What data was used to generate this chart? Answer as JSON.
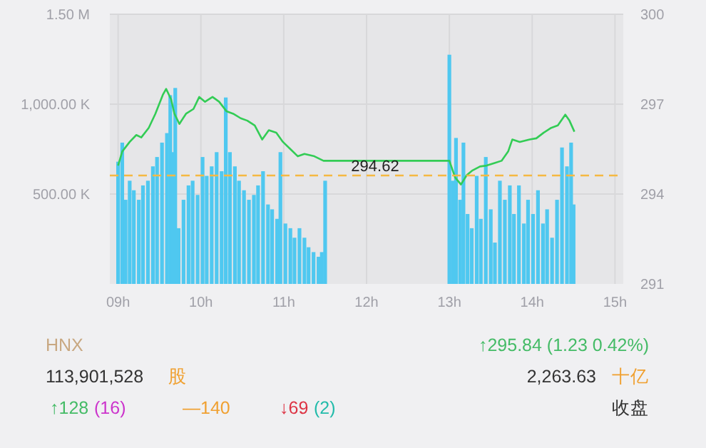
{
  "chart_data": {
    "type": "bar",
    "xlim": [
      8.9,
      15.1
    ],
    "xticks": [
      {
        "value": 9,
        "label": "09h"
      },
      {
        "value": 10,
        "label": "10h"
      },
      {
        "value": 11,
        "label": "11h"
      },
      {
        "value": 12,
        "label": "12h"
      },
      {
        "value": 13,
        "label": "13h"
      },
      {
        "value": 14,
        "label": "14h"
      },
      {
        "value": 15,
        "label": "15h"
      }
    ],
    "ylim": [
      0,
      1500000
    ],
    "yticks": [
      {
        "value": 500000,
        "label": "500.00 K"
      },
      {
        "value": 1000000,
        "label": "1,000.00 K"
      },
      {
        "value": 1500000,
        "label": "1.50 M"
      }
    ],
    "y2lim": [
      291,
      300
    ],
    "y2ticks": [
      291,
      294,
      297,
      300
    ],
    "grid": true,
    "marker": "none",
    "line_style": "solid",
    "series": [
      {
        "color": "#4fc8f0",
        "x": [
          9.0,
          9.05,
          9.09,
          9.14,
          9.19,
          9.25,
          9.3,
          9.36,
          9.42,
          9.47,
          9.53,
          9.59,
          9.63,
          9.66,
          9.69,
          9.73,
          9.79,
          9.85,
          9.9,
          9.96,
          10.02,
          10.07,
          10.13,
          10.19,
          10.25,
          10.3,
          10.35,
          10.41,
          10.46,
          10.52,
          10.58,
          10.64,
          10.69,
          10.75,
          10.81,
          10.86,
          10.92,
          10.96,
          11.02,
          11.08,
          11.13,
          11.19,
          11.25,
          11.3,
          11.36,
          11.42,
          11.46,
          11.5,
          13.0,
          13.04,
          13.08,
          13.13,
          13.17,
          13.22,
          13.27,
          13.33,
          13.38,
          13.44,
          13.5,
          13.55,
          13.61,
          13.67,
          13.73,
          13.78,
          13.84,
          13.9,
          13.95,
          14.01,
          14.07,
          14.13,
          14.18,
          14.24,
          14.3,
          14.36,
          14.42,
          14.47,
          14.5
        ],
        "values": [
          680000,
          786000,
          468000,
          574000,
          521000,
          468000,
          548000,
          574000,
          654000,
          706000,
          786000,
          839000,
          1050000,
          733000,
          1090000,
          310000,
          468000,
          548000,
          574000,
          495000,
          706000,
          601000,
          654000,
          733000,
          627000,
          1037000,
          733000,
          654000,
          574000,
          521000,
          468000,
          495000,
          548000,
          627000,
          442000,
          415000,
          362000,
          733000,
          336000,
          310000,
          257000,
          310000,
          257000,
          204000,
          177000,
          151000,
          177000,
          574000,
          1275000,
          574000,
          812000,
          468000,
          786000,
          389000,
          310000,
          601000,
          362000,
          706000,
          415000,
          230000,
          574000,
          468000,
          548000,
          389000,
          548000,
          336000,
          468000,
          389000,
          521000,
          336000,
          415000,
          257000,
          468000,
          759000,
          654000,
          786000,
          442000
        ]
      },
      {
        "type": "line",
        "axis": "y2",
        "color": "#33cc55",
        "x": [
          9.0,
          9.05,
          9.14,
          9.22,
          9.28,
          9.37,
          9.45,
          9.54,
          9.58,
          9.64,
          9.68,
          9.74,
          9.82,
          9.91,
          9.98,
          10.05,
          10.14,
          10.22,
          10.31,
          10.39,
          10.48,
          10.56,
          10.65,
          10.74,
          10.82,
          10.91,
          10.99,
          11.08,
          11.17,
          11.25,
          11.37,
          11.48,
          13.0,
          13.07,
          13.14,
          13.21,
          13.28,
          13.37,
          13.45,
          13.54,
          13.63,
          13.71,
          13.76,
          13.85,
          13.97,
          14.05,
          14.14,
          14.23,
          14.31,
          14.4,
          14.45,
          14.51
        ],
        "values": [
          294.95,
          295.42,
          295.74,
          295.97,
          295.89,
          296.21,
          296.68,
          297.31,
          297.51,
          297.16,
          296.68,
          296.34,
          296.68,
          296.84,
          297.24,
          297.08,
          297.24,
          297.08,
          296.76,
          296.68,
          296.53,
          296.45,
          296.29,
          295.82,
          296.13,
          296.05,
          295.74,
          295.5,
          295.26,
          295.34,
          295.26,
          295.11,
          295.11,
          294.55,
          294.32,
          294.63,
          294.79,
          294.92,
          294.95,
          295.03,
          295.11,
          295.42,
          295.82,
          295.74,
          295.82,
          295.86,
          296.05,
          296.21,
          296.29,
          296.65,
          296.45,
          296.08
        ]
      }
    ],
    "ref_lines": [
      {
        "axis": "y2",
        "value": 294.62,
        "label": "294.62",
        "color": "#f5b942",
        "line_style": "dashed"
      }
    ],
    "annotations": [
      "HNX",
      "113,901,528",
      "股",
      "↑128",
      "(16)",
      "—140",
      "↓69",
      "(2)",
      "↑295.84 (1.23 0.42%)",
      "2,263.63",
      "十亿",
      "收盘"
    ]
  }
}
